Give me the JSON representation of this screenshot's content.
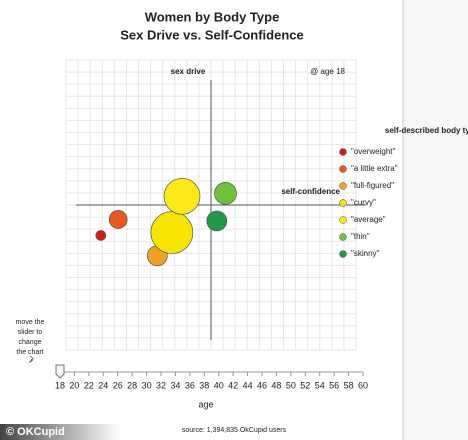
{
  "chart_data": {
    "type": "bubble",
    "title": "Women by Body Type",
    "subtitle": "Sex Drive vs. Self-Confidence",
    "y_axis_label": "sex drive",
    "x_axis_label": "self-confidence",
    "annotation": "@ age 18",
    "xlim": [
      -1,
      1
    ],
    "ylim": [
      -1,
      1
    ],
    "grid": true,
    "legend_title": "self-described body type",
    "legend_position": "right",
    "series": [
      {
        "name": "\"overweight\"",
        "color": "#c9201b",
        "x": -0.76,
        "y": -0.21,
        "size": 5
      },
      {
        "name": "\"a little extra\"",
        "color": "#e8591e",
        "x": -0.64,
        "y": -0.1,
        "size": 9
      },
      {
        "name": "\"full-figured\"",
        "color": "#f0a224",
        "x": -0.37,
        "y": -0.35,
        "size": 10
      },
      {
        "name": "\"curvy\"",
        "color": "#f6e500",
        "x": -0.27,
        "y": -0.19,
        "size": 21
      },
      {
        "name": "\"average\"",
        "color": "#fde81a",
        "x": -0.2,
        "y": 0.06,
        "size": 18
      },
      {
        "name": "\"thin\"",
        "color": "#6cc23a",
        "x": 0.1,
        "y": 0.08,
        "size": 11
      },
      {
        "name": "\"skinny\"",
        "color": "#1f9a4b",
        "x": 0.04,
        "y": -0.11,
        "size": 10
      }
    ],
    "slider": {
      "label": "age",
      "value": 18,
      "ticks": [
        18,
        20,
        22,
        24,
        26,
        28,
        30,
        32,
        34,
        36,
        38,
        40,
        42,
        44,
        46,
        48,
        50,
        52,
        54,
        56,
        58,
        60
      ],
      "hint": [
        "move the",
        "slider to",
        "change",
        "the chart"
      ]
    },
    "source": "source: 1,394,835 OkCupid users",
    "watermark": "© OKCupid"
  }
}
